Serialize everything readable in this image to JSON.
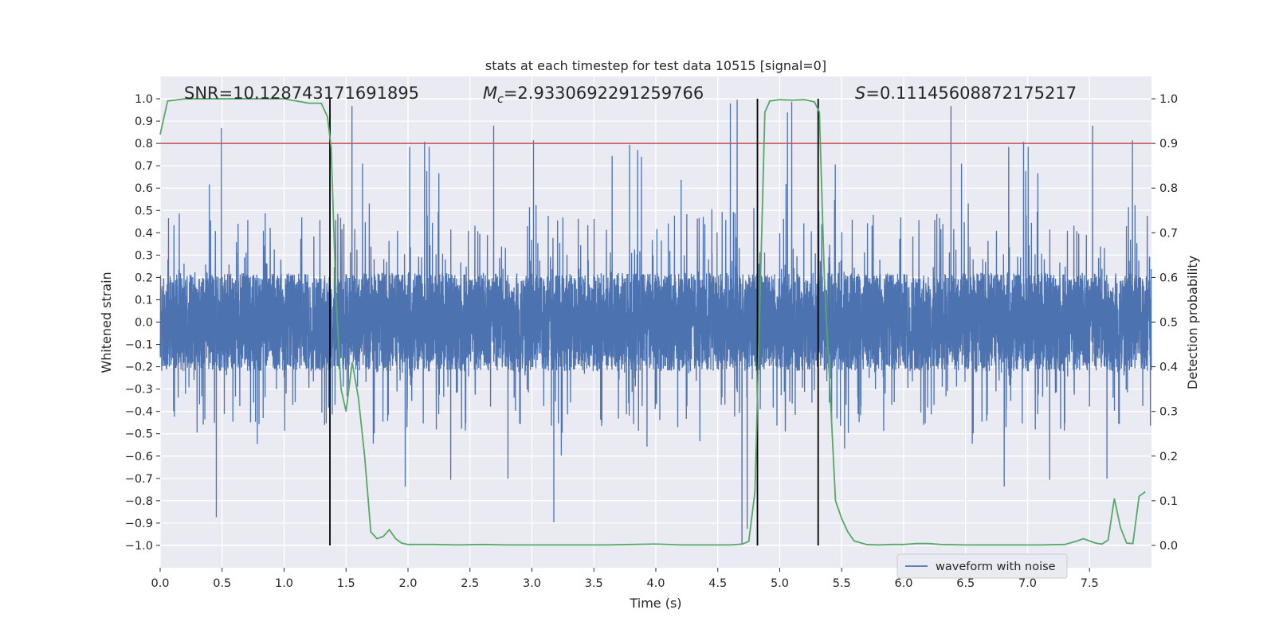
{
  "chart_data": {
    "type": "line",
    "title": "stats at each timestep for test data 10515 [signal=0]",
    "xlabel": "Time (s)",
    "ylabel_left": "Whitened strain",
    "ylabel_right": "Detection probability",
    "xlim": [
      0.0,
      8.0
    ],
    "ylim_left": [
      -1.1,
      1.1
    ],
    "ylim_right": [
      -0.05,
      1.05
    ],
    "x_ticks": [
      0.0,
      0.5,
      1.0,
      1.5,
      2.0,
      2.5,
      3.0,
      3.5,
      4.0,
      4.5,
      5.0,
      5.5,
      6.0,
      6.5,
      7.0,
      7.5
    ],
    "x_tick_labels": [
      "0.0",
      "0.5",
      "1.0",
      "1.5",
      "2.0",
      "2.5",
      "3.0",
      "3.5",
      "4.0",
      "4.5",
      "5.0",
      "5.5",
      "6.0",
      "6.5",
      "7.0",
      "7.5"
    ],
    "y_left_ticks": [
      1.0,
      0.9,
      0.8,
      0.7,
      0.6,
      0.5,
      0.4,
      0.3,
      0.2,
      0.1,
      0.0,
      -0.1,
      -0.2,
      -0.3,
      -0.4,
      -0.5,
      -0.6,
      -0.7,
      -0.8,
      -0.9,
      -1.0
    ],
    "y_left_tick_labels": [
      "1.0",
      "0.9",
      "0.8",
      "0.7",
      "0.6",
      "0.5",
      "0.4",
      "0.3",
      "0.2",
      "0.1",
      "0.0",
      "−0.1",
      "−0.2",
      "−0.3",
      "−0.4",
      "−0.5",
      "−0.6",
      "−0.7",
      "−0.8",
      "−0.9",
      "−1.0"
    ],
    "y_right_ticks": [
      1.0,
      0.9,
      0.8,
      0.7,
      0.6,
      0.5,
      0.4,
      0.3,
      0.2,
      0.1,
      0.0
    ],
    "y_right_tick_labels": [
      "1.0",
      "0.9",
      "0.8",
      "0.7",
      "0.6",
      "0.5",
      "0.4",
      "0.3",
      "0.2",
      "0.1",
      "0.0"
    ],
    "annotations": {
      "snr": "SNR=10.128743171691895",
      "mc_symbol": "M",
      "mc_subscript": "c",
      "mc_value": "=2.9330692291259766",
      "s_symbol": "S",
      "s_value": "=0.11145608872175217"
    },
    "threshold_left": 0.8,
    "vertical_lines_x": [
      1.37,
      4.82,
      5.31
    ],
    "legend": {
      "location": "lower-right",
      "entries": [
        "waveform with noise"
      ]
    },
    "waveform": {
      "name": "waveform with noise",
      "color": "#4c72b0",
      "samples": 8192,
      "sample_rate_hz": 1024,
      "core_amplitude": 0.22,
      "max_abs": 1.0
    },
    "detection_probability": {
      "color": "#55a868",
      "x": [
        0.0,
        0.06,
        0.12,
        0.2,
        0.3,
        0.4,
        0.5,
        0.6,
        0.7,
        0.8,
        0.9,
        1.0,
        1.1,
        1.2,
        1.3,
        1.35,
        1.38,
        1.42,
        1.46,
        1.5,
        1.55,
        1.6,
        1.65,
        1.7,
        1.75,
        1.8,
        1.85,
        1.9,
        1.95,
        2.0,
        2.2,
        2.4,
        2.6,
        2.8,
        3.0,
        3.2,
        3.4,
        3.6,
        3.8,
        4.0,
        4.2,
        4.4,
        4.6,
        4.7,
        4.75,
        4.8,
        4.85,
        4.88,
        4.92,
        5.0,
        5.1,
        5.2,
        5.28,
        5.32,
        5.36,
        5.4,
        5.45,
        5.5,
        5.55,
        5.6,
        5.7,
        5.8,
        5.9,
        6.0,
        6.1,
        6.2,
        6.3,
        6.5,
        6.7,
        6.9,
        7.1,
        7.3,
        7.4,
        7.45,
        7.5,
        7.55,
        7.6,
        7.65,
        7.7,
        7.75,
        7.8,
        7.85,
        7.9,
        7.95
      ],
      "y": [
        0.92,
        0.995,
        0.997,
        1.0,
        1.0,
        1.0,
        1.0,
        1.0,
        1.0,
        1.0,
        1.0,
        1.0,
        0.995,
        0.99,
        0.99,
        0.96,
        0.89,
        0.55,
        0.35,
        0.3,
        0.41,
        0.33,
        0.2,
        0.03,
        0.015,
        0.02,
        0.035,
        0.015,
        0.005,
        0.002,
        0.002,
        0.001,
        0.002,
        0.001,
        0.001,
        0.001,
        0.001,
        0.001,
        0.002,
        0.003,
        0.001,
        0.001,
        0.001,
        0.003,
        0.009,
        0.12,
        0.65,
        0.97,
        0.995,
        0.998,
        0.997,
        0.998,
        0.993,
        0.97,
        0.6,
        0.38,
        0.1,
        0.06,
        0.03,
        0.01,
        0.002,
        0.001,
        0.002,
        0.002,
        0.004,
        0.004,
        0.002,
        0.001,
        0.001,
        0.001,
        0.001,
        0.002,
        0.01,
        0.015,
        0.01,
        0.005,
        0.003,
        0.012,
        0.105,
        0.04,
        0.005,
        0.004,
        0.11,
        0.12
      ]
    }
  }
}
